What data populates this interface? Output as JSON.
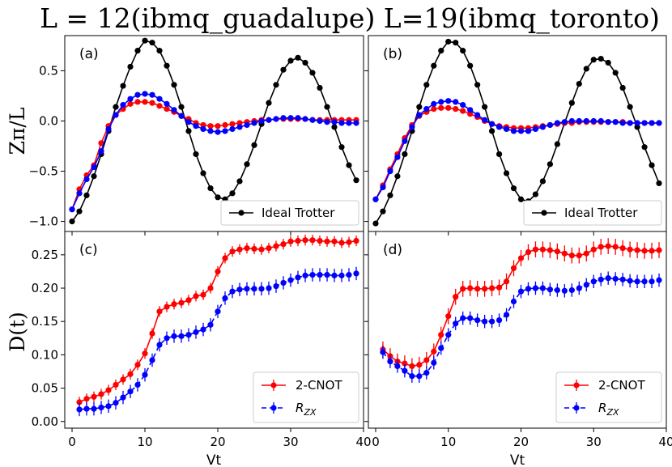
{
  "title": "L = 12(ibmq_guadalupe) L=19(ibmq_toronto)",
  "axis_labels": {
    "top_ylabel": "Zπ/L",
    "bottom_ylabel": "D(t)",
    "xlabel": "Vt"
  },
  "colors": {
    "ideal": "#000000",
    "cnot": "#ff0000",
    "rzx": "#0000ff"
  },
  "legends": {
    "top": [
      "Ideal Trotter"
    ],
    "bottom": [
      "2-CNOT",
      "R_ZX"
    ]
  },
  "chart_data": [
    {
      "panel": "(a)",
      "type": "line",
      "xlim": [
        -1,
        40
      ],
      "ylim": [
        -1.1,
        0.85
      ],
      "yticks": [
        -1.0,
        -0.5,
        0.0,
        0.5
      ],
      "xticks": [
        0,
        10,
        20,
        30,
        40
      ],
      "legend_position": "lower-right",
      "series": [
        {
          "name": "Ideal Trotter",
          "color": "#000000",
          "x": [
            0,
            1,
            2,
            3,
            4,
            5,
            6,
            7,
            8,
            9,
            10,
            11,
            12,
            13,
            14,
            15,
            16,
            17,
            18,
            19,
            20,
            21,
            22,
            23,
            24,
            25,
            26,
            27,
            28,
            29,
            30,
            31,
            32,
            33,
            34,
            35,
            36,
            37,
            38,
            39
          ],
          "y": [
            -1.0,
            -0.9,
            -0.74,
            -0.55,
            -0.33,
            -0.1,
            0.14,
            0.35,
            0.54,
            0.7,
            0.8,
            0.78,
            0.7,
            0.55,
            0.36,
            0.14,
            -0.1,
            -0.33,
            -0.52,
            -0.67,
            -0.76,
            -0.78,
            -0.72,
            -0.6,
            -0.43,
            -0.24,
            -0.03,
            0.18,
            0.36,
            0.51,
            0.6,
            0.63,
            0.58,
            0.48,
            0.33,
            0.14,
            -0.06,
            -0.26,
            -0.44,
            -0.59
          ]
        },
        {
          "name": "2-CNOT",
          "color": "#ff0000",
          "x": [
            0,
            1,
            2,
            3,
            4,
            5,
            6,
            7,
            8,
            9,
            10,
            11,
            12,
            13,
            14,
            15,
            16,
            17,
            18,
            19,
            20,
            21,
            22,
            23,
            24,
            25,
            26,
            27,
            28,
            29,
            30,
            31,
            32,
            33,
            34,
            35,
            36,
            37,
            38,
            39
          ],
          "y": [
            -0.88,
            -0.68,
            -0.54,
            -0.44,
            -0.22,
            -0.05,
            0.06,
            0.12,
            0.17,
            0.19,
            0.19,
            0.18,
            0.15,
            0.12,
            0.09,
            0.05,
            0.02,
            -0.02,
            -0.04,
            -0.05,
            -0.05,
            -0.04,
            -0.03,
            -0.02,
            -0.01,
            0.0,
            0.01,
            0.01,
            0.02,
            0.02,
            0.02,
            0.02,
            0.02,
            0.01,
            0.01,
            0.01,
            0.01,
            0.01,
            0.01,
            0.01
          ]
        },
        {
          "name": "R_ZX",
          "color": "#0000ff",
          "x": [
            0,
            1,
            2,
            3,
            4,
            5,
            6,
            7,
            8,
            9,
            10,
            11,
            12,
            13,
            14,
            15,
            16,
            17,
            18,
            19,
            20,
            21,
            22,
            23,
            24,
            25,
            26,
            27,
            28,
            29,
            30,
            31,
            32,
            33,
            34,
            35,
            36,
            37,
            38,
            39
          ],
          "y": [
            -0.88,
            -0.72,
            -0.58,
            -0.46,
            -0.3,
            -0.08,
            0.06,
            0.16,
            0.22,
            0.26,
            0.27,
            0.26,
            0.22,
            0.17,
            0.11,
            0.05,
            -0.01,
            -0.05,
            -0.08,
            -0.1,
            -0.11,
            -0.1,
            -0.08,
            -0.06,
            -0.04,
            -0.02,
            0.0,
            0.01,
            0.02,
            0.03,
            0.03,
            0.03,
            0.02,
            0.01,
            0.0,
            -0.01,
            -0.01,
            -0.02,
            -0.02,
            -0.02
          ]
        }
      ]
    },
    {
      "panel": "(b)",
      "type": "line",
      "xlim": [
        -1,
        40
      ],
      "ylim": [
        -1.1,
        0.85
      ],
      "yticks": [
        -1.0,
        -0.5,
        0.0,
        0.5
      ],
      "xticks": [
        0,
        10,
        20,
        30,
        40
      ],
      "legend_position": "lower-right",
      "series": [
        {
          "name": "Ideal Trotter",
          "color": "#000000",
          "x": [
            0,
            1,
            2,
            3,
            4,
            5,
            6,
            7,
            8,
            9,
            10,
            11,
            12,
            13,
            14,
            15,
            16,
            17,
            18,
            19,
            20,
            21,
            22,
            23,
            24,
            25,
            26,
            27,
            28,
            29,
            30,
            31,
            32,
            33,
            34,
            35,
            36,
            37,
            38,
            39
          ],
          "y": [
            -1.02,
            -0.9,
            -0.74,
            -0.55,
            -0.33,
            -0.1,
            0.14,
            0.36,
            0.55,
            0.7,
            0.79,
            0.78,
            0.7,
            0.55,
            0.36,
            0.14,
            -0.1,
            -0.33,
            -0.52,
            -0.67,
            -0.78,
            -0.8,
            -0.73,
            -0.6,
            -0.43,
            -0.23,
            -0.02,
            0.18,
            0.37,
            0.52,
            0.61,
            0.62,
            0.58,
            0.48,
            0.33,
            0.14,
            -0.06,
            -0.26,
            -0.44,
            -0.62
          ]
        },
        {
          "name": "2-CNOT",
          "color": "#ff0000",
          "x": [
            0,
            1,
            2,
            3,
            4,
            5,
            6,
            7,
            8,
            9,
            10,
            11,
            12,
            13,
            14,
            15,
            16,
            17,
            18,
            19,
            20,
            21,
            22,
            23,
            24,
            25,
            26,
            27,
            28,
            29,
            30,
            31,
            32,
            33,
            34,
            35,
            36,
            37,
            38,
            39
          ],
          "y": [
            -0.78,
            -0.64,
            -0.48,
            -0.33,
            -0.17,
            -0.04,
            0.05,
            0.09,
            0.12,
            0.13,
            0.13,
            0.12,
            0.1,
            0.07,
            0.04,
            0.0,
            -0.03,
            -0.05,
            -0.06,
            -0.07,
            -0.07,
            -0.07,
            -0.06,
            -0.05,
            -0.04,
            -0.03,
            -0.02,
            -0.02,
            -0.01,
            -0.01,
            -0.01,
            -0.01,
            -0.01,
            -0.01,
            -0.01,
            -0.02,
            -0.02,
            -0.02,
            -0.02,
            -0.02
          ]
        },
        {
          "name": "R_ZX",
          "color": "#0000ff",
          "x": [
            0,
            1,
            2,
            3,
            4,
            5,
            6,
            7,
            8,
            9,
            10,
            11,
            12,
            13,
            14,
            15,
            16,
            17,
            18,
            19,
            20,
            21,
            22,
            23,
            24,
            25,
            26,
            27,
            28,
            29,
            30,
            31,
            32,
            33,
            34,
            35,
            36,
            37,
            38,
            39
          ],
          "y": [
            -0.78,
            -0.66,
            -0.5,
            -0.36,
            -0.2,
            -0.06,
            0.06,
            0.12,
            0.17,
            0.19,
            0.2,
            0.19,
            0.16,
            0.11,
            0.06,
            0.01,
            -0.03,
            -0.06,
            -0.08,
            -0.1,
            -0.1,
            -0.1,
            -0.08,
            -0.06,
            -0.04,
            -0.02,
            -0.01,
            0.0,
            0.0,
            0.0,
            0.0,
            0.0,
            -0.01,
            -0.01,
            -0.02,
            -0.02,
            -0.02,
            -0.02,
            -0.02,
            -0.02
          ]
        }
      ]
    },
    {
      "panel": "(c)",
      "type": "line",
      "xlim": [
        -1,
        40
      ],
      "ylim": [
        -0.01,
        0.285
      ],
      "yticks": [
        0.0,
        0.05,
        0.1,
        0.15,
        0.2,
        0.25
      ],
      "xticks": [
        0,
        10,
        20,
        30,
        40
      ],
      "legend_position": "lower-right",
      "series": [
        {
          "name": "2-CNOT",
          "color": "#ff0000",
          "error": 0.008,
          "x": [
            1,
            2,
            3,
            4,
            5,
            6,
            7,
            8,
            9,
            10,
            11,
            12,
            13,
            14,
            15,
            16,
            17,
            18,
            19,
            20,
            21,
            22,
            23,
            24,
            25,
            26,
            27,
            28,
            29,
            30,
            31,
            32,
            33,
            34,
            35,
            36,
            37,
            38,
            39
          ],
          "y": [
            0.029,
            0.034,
            0.037,
            0.041,
            0.047,
            0.055,
            0.063,
            0.071,
            0.085,
            0.102,
            0.132,
            0.165,
            0.172,
            0.176,
            0.178,
            0.182,
            0.188,
            0.19,
            0.2,
            0.225,
            0.245,
            0.255,
            0.258,
            0.26,
            0.259,
            0.258,
            0.26,
            0.263,
            0.266,
            0.27,
            0.271,
            0.272,
            0.272,
            0.271,
            0.27,
            0.27,
            0.268,
            0.269,
            0.271
          ]
        },
        {
          "name": "R_ZX",
          "color": "#0000ff",
          "error": 0.01,
          "x": [
            1,
            2,
            3,
            4,
            5,
            6,
            7,
            8,
            9,
            10,
            11,
            12,
            13,
            14,
            15,
            16,
            17,
            18,
            19,
            20,
            21,
            22,
            23,
            24,
            25,
            26,
            27,
            28,
            29,
            30,
            31,
            32,
            33,
            34,
            35,
            36,
            37,
            38,
            39
          ],
          "y": [
            0.018,
            0.019,
            0.019,
            0.021,
            0.023,
            0.028,
            0.036,
            0.045,
            0.055,
            0.07,
            0.092,
            0.115,
            0.125,
            0.128,
            0.128,
            0.13,
            0.134,
            0.138,
            0.145,
            0.165,
            0.185,
            0.195,
            0.198,
            0.199,
            0.199,
            0.199,
            0.2,
            0.203,
            0.208,
            0.212,
            0.216,
            0.219,
            0.22,
            0.22,
            0.22,
            0.219,
            0.219,
            0.22,
            0.222
          ]
        }
      ]
    },
    {
      "panel": "(d)",
      "type": "line",
      "xlim": [
        -1,
        40
      ],
      "ylim": [
        -0.01,
        0.285
      ],
      "yticks": [
        0.0,
        0.05,
        0.1,
        0.15,
        0.2,
        0.25
      ],
      "xticks": [
        0,
        10,
        20,
        30,
        40
      ],
      "legend_position": "lower-right",
      "series": [
        {
          "name": "2-CNOT",
          "color": "#ff0000",
          "error": 0.012,
          "x": [
            1,
            2,
            3,
            4,
            5,
            6,
            7,
            8,
            9,
            10,
            11,
            12,
            13,
            14,
            15,
            16,
            17,
            18,
            19,
            20,
            21,
            22,
            23,
            24,
            25,
            26,
            27,
            28,
            29,
            30,
            31,
            32,
            33,
            34,
            35,
            36,
            37,
            38,
            39
          ],
          "y": [
            0.108,
            0.098,
            0.09,
            0.087,
            0.083,
            0.085,
            0.092,
            0.105,
            0.13,
            0.158,
            0.187,
            0.199,
            0.2,
            0.199,
            0.199,
            0.2,
            0.201,
            0.21,
            0.23,
            0.245,
            0.254,
            0.258,
            0.258,
            0.257,
            0.255,
            0.252,
            0.249,
            0.249,
            0.252,
            0.258,
            0.262,
            0.263,
            0.262,
            0.26,
            0.258,
            0.257,
            0.256,
            0.256,
            0.257
          ]
        },
        {
          "name": "R_ZX",
          "color": "#0000ff",
          "error": 0.01,
          "x": [
            1,
            2,
            3,
            4,
            5,
            6,
            7,
            8,
            9,
            10,
            11,
            12,
            13,
            14,
            15,
            16,
            17,
            18,
            19,
            20,
            21,
            22,
            23,
            24,
            25,
            26,
            27,
            28,
            29,
            30,
            31,
            32,
            33,
            34,
            35,
            36,
            37,
            38,
            39
          ],
          "y": [
            0.104,
            0.09,
            0.083,
            0.076,
            0.068,
            0.068,
            0.073,
            0.088,
            0.11,
            0.13,
            0.147,
            0.155,
            0.155,
            0.152,
            0.15,
            0.15,
            0.152,
            0.16,
            0.18,
            0.195,
            0.199,
            0.2,
            0.2,
            0.198,
            0.197,
            0.196,
            0.197,
            0.2,
            0.205,
            0.21,
            0.213,
            0.215,
            0.214,
            0.213,
            0.211,
            0.21,
            0.21,
            0.21,
            0.212
          ]
        }
      ]
    }
  ]
}
